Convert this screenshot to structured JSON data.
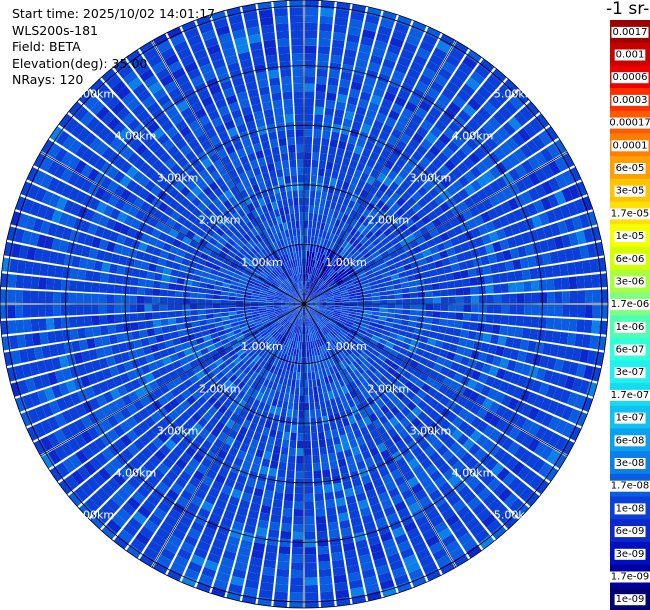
{
  "info": {
    "start_time": "Start time: 2025/10/02 14:01:17",
    "instrument": "WLS200s-181",
    "field": "Field: BETA",
    "elevation": "Elevation(deg): 35.00",
    "nrays": "NRays: 120"
  },
  "colorbar": {
    "title_fragment": "-1 sr-",
    "levels": [
      "0.0017",
      "0.001",
      "0.0006",
      "0.0003",
      "0.00017",
      "0.0001",
      "6e-05",
      "3e-05",
      "1.7e-05",
      "1e-05",
      "6e-06",
      "3e-06",
      "1.7e-06",
      "1e-06",
      "6e-07",
      "3e-07",
      "1.7e-07",
      "1e-07",
      "6e-08",
      "3e-08",
      "1.7e-08",
      "1e-08",
      "6e-09",
      "3e-09",
      "1.7e-09",
      "1e-09"
    ],
    "colors": [
      "#a00000",
      "#c80000",
      "#ee0000",
      "#ff3000",
      "#ff5a00",
      "#ff7e00",
      "#ffa000",
      "#ffc400",
      "#ffe000",
      "#f4ff00",
      "#d4ff00",
      "#a8ff40",
      "#80ff80",
      "#50ffb0",
      "#30ffd8",
      "#20f0f0",
      "#14dcf0",
      "#10c0f0",
      "#0aa0f0",
      "#0a80e8",
      "#0a5ce0",
      "#0a40d8",
      "#0a28cc",
      "#0010c0",
      "#0000a0",
      "#000070"
    ]
  },
  "chart_data": {
    "type": "ppi_polar",
    "field": "BETA",
    "elevation_deg": 35.0,
    "n_rays": 120,
    "range_rings_km": [
      1,
      2,
      3,
      4,
      5
    ],
    "range_ring_labels": [
      "1.00km",
      "2.00km",
      "3.00km",
      "4.00km",
      "5.00km"
    ],
    "max_range_km": 5.1,
    "background_level": "1e-08",
    "data_range": [
      "1e-09",
      "3e-08"
    ],
    "near_field_level": "3e-09"
  }
}
